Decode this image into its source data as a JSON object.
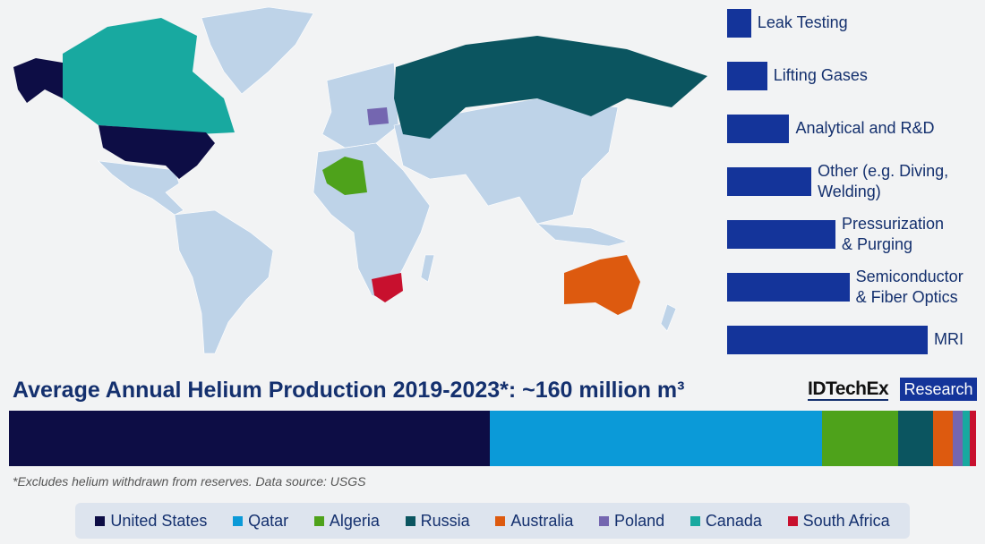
{
  "usage_chart": {
    "type": "bar",
    "orientation": "horizontal",
    "categories": [
      "Leak Testing",
      "Lifting Gases",
      "Analytical and R&D",
      "Other (e.g. Diving, Welding)",
      "Pressurization & Purging",
      "Semiconductor & Fiber Optics",
      "MRI"
    ],
    "values_relative": [
      12,
      20,
      31,
      42,
      54,
      61,
      100
    ],
    "color": "#14349a"
  },
  "chart_data": {
    "type": "bar",
    "stacked": true,
    "title": "Average Annual Helium Production 2019-2023*: ~160 million m³",
    "note": "*Excludes helium withdrawn from reserves. Data source: USGS",
    "series": [
      {
        "name": "United States",
        "share_pct": 49.7,
        "color": "#0d0d45"
      },
      {
        "name": "Qatar",
        "share_pct": 34.4,
        "color": "#0b9ad8"
      },
      {
        "name": "Algeria",
        "share_pct": 7.8,
        "color": "#4ea21b"
      },
      {
        "name": "Russia",
        "share_pct": 3.7,
        "color": "#0b5560"
      },
      {
        "name": "Australia",
        "share_pct": 2.0,
        "color": "#dd5a0f"
      },
      {
        "name": "Poland",
        "share_pct": 1.0,
        "color": "#7466b0"
      },
      {
        "name": "Canada",
        "share_pct": 0.8,
        "color": "#18a9a0"
      },
      {
        "name": "South Africa",
        "share_pct": 0.6,
        "color": "#c8102e"
      }
    ]
  },
  "brand": {
    "name": "IDTechEx",
    "tag": "Research"
  },
  "map_colors": {
    "land": "#bed3e8",
    "ocean": "#f2f3f4"
  }
}
